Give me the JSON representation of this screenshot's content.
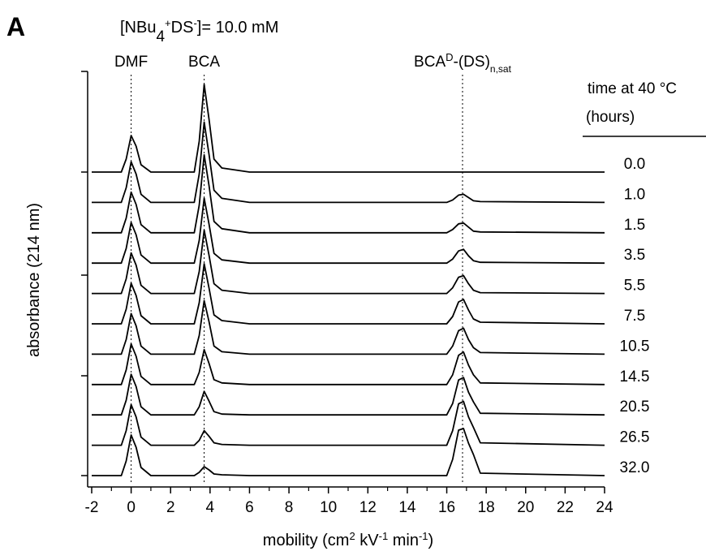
{
  "chart_data": {
    "type": "line",
    "panel_label": "A",
    "subtitle": [
      {
        "text": "[NBu"
      },
      {
        "sub": "4"
      },
      {
        "sup": "+"
      },
      {
        "text": "DS"
      },
      {
        "sup": "-"
      },
      {
        "text": "]= 10.0 mM"
      }
    ],
    "x_label": [
      {
        "text": "mobility (cm"
      },
      {
        "sup": "2"
      },
      {
        "text": " kV"
      },
      {
        "sup": "-1"
      },
      {
        "text": " min"
      },
      {
        "sup": "-1"
      },
      {
        "text": ")"
      }
    ],
    "y_label": "absorbance (214 nm)",
    "legend_title": [
      "time at 40 °C",
      "(hours)"
    ],
    "peak_markers": [
      {
        "x": 0,
        "label": [
          {
            "text": "DMF"
          }
        ]
      },
      {
        "x": 3.7,
        "label": [
          {
            "text": "BCA"
          }
        ]
      },
      {
        "x": 16.8,
        "label": [
          {
            "text": "BCA"
          },
          {
            "sup": "D"
          },
          {
            "text": "-(DS)"
          },
          {
            "sub": "n,sat"
          }
        ]
      }
    ],
    "xlim": [
      -2,
      24
    ],
    "xticks": [
      -2,
      0,
      2,
      4,
      6,
      8,
      10,
      12,
      14,
      16,
      18,
      20,
      22,
      24
    ],
    "xminorticks": [
      -1,
      1,
      3,
      5,
      7,
      9,
      11,
      13,
      15,
      17,
      19,
      21,
      23
    ],
    "x": [
      -2,
      -0.5,
      -0.25,
      0,
      0.25,
      0.5,
      1,
      3.2,
      3.45,
      3.7,
      3.95,
      4.2,
      4.6,
      6,
      16.0,
      16.3,
      16.6,
      16.85,
      17.1,
      17.35,
      17.7,
      24
    ],
    "series": [
      {
        "name": "0.0",
        "color": "#000000",
        "values": [
          0,
          0,
          1.6,
          4.5,
          3.2,
          0.9,
          0,
          0,
          3.8,
          10.8,
          6.5,
          1.6,
          0.5,
          0,
          0,
          0,
          0,
          0,
          0,
          0,
          0,
          0
        ]
      },
      {
        "name": "1.0",
        "color": "#000000",
        "values": [
          0,
          0,
          1.8,
          5,
          3.5,
          1,
          0,
          0,
          3.5,
          9.9,
          5.9,
          1.5,
          0.5,
          0,
          0,
          0.3,
          0.9,
          1.0,
          0.6,
          0.2,
          0.1,
          0
        ]
      },
      {
        "name": "1.5",
        "color": "#000000",
        "values": [
          0,
          0,
          1.8,
          5,
          3.5,
          1,
          0,
          0,
          3.4,
          9.6,
          5.8,
          1.4,
          0.5,
          0,
          0,
          0.4,
          1.1,
          1.2,
          0.7,
          0.2,
          0.1,
          0
        ]
      },
      {
        "name": "3.5",
        "color": "#000000",
        "values": [
          0,
          0,
          1.8,
          5,
          3.5,
          1,
          0,
          0,
          2.8,
          8.0,
          4.8,
          1.2,
          0.4,
          0,
          0,
          0.5,
          1.5,
          1.7,
          0.9,
          0.3,
          0.1,
          0
        ]
      },
      {
        "name": "5.5",
        "color": "#000000",
        "values": [
          0,
          0,
          1.8,
          5,
          3.5,
          1,
          0,
          0,
          2.7,
          7.8,
          4.7,
          1.2,
          0.4,
          0,
          0,
          0.7,
          2.0,
          2.2,
          1.2,
          0.4,
          0.1,
          0
        ]
      },
      {
        "name": "7.5",
        "color": "#000000",
        "values": [
          0,
          0,
          1.8,
          5,
          3.5,
          1,
          0,
          0,
          2.6,
          7.4,
          4.4,
          1.1,
          0.4,
          0,
          0,
          0.9,
          2.7,
          3.0,
          1.7,
          0.6,
          0.2,
          0
        ]
      },
      {
        "name": "10.5",
        "color": "#000000",
        "values": [
          0,
          0,
          1.8,
          5,
          3.5,
          1,
          0,
          0,
          2.3,
          6.6,
          4.0,
          1.0,
          0.3,
          0,
          0,
          1.0,
          2.9,
          3.2,
          1.8,
          0.8,
          0.2,
          0
        ]
      },
      {
        "name": "14.5",
        "color": "#000000",
        "values": [
          0,
          0,
          1.8,
          5,
          3.5,
          1,
          0,
          0,
          1.5,
          4.3,
          2.6,
          0.6,
          0.2,
          0,
          0,
          1.2,
          3.6,
          4.0,
          2.4,
          1.2,
          0.2,
          0
        ]
      },
      {
        "name": "20.5",
        "color": "#000000",
        "values": [
          0,
          0,
          1.8,
          5,
          3.5,
          1,
          0,
          0,
          1.0,
          2.9,
          1.7,
          0.4,
          0.1,
          0,
          0,
          1.4,
          4.3,
          4.6,
          2.8,
          1.6,
          0.2,
          0
        ]
      },
      {
        "name": "26.5",
        "color": "#000000",
        "values": [
          0,
          0,
          1.8,
          5,
          3.5,
          1,
          0,
          0,
          0.6,
          1.8,
          1.1,
          0.3,
          0.1,
          0,
          0,
          1.8,
          5.1,
          5.4,
          3.5,
          2.2,
          0.3,
          0
        ]
      },
      {
        "name": "32.0",
        "color": "#000000",
        "values": [
          0,
          0,
          1.8,
          5,
          3.5,
          1,
          0,
          0,
          0.4,
          1.1,
          0.7,
          0.2,
          0.1,
          0,
          0,
          2.0,
          5.6,
          5.8,
          4.0,
          2.6,
          0.3,
          0
        ]
      }
    ]
  }
}
